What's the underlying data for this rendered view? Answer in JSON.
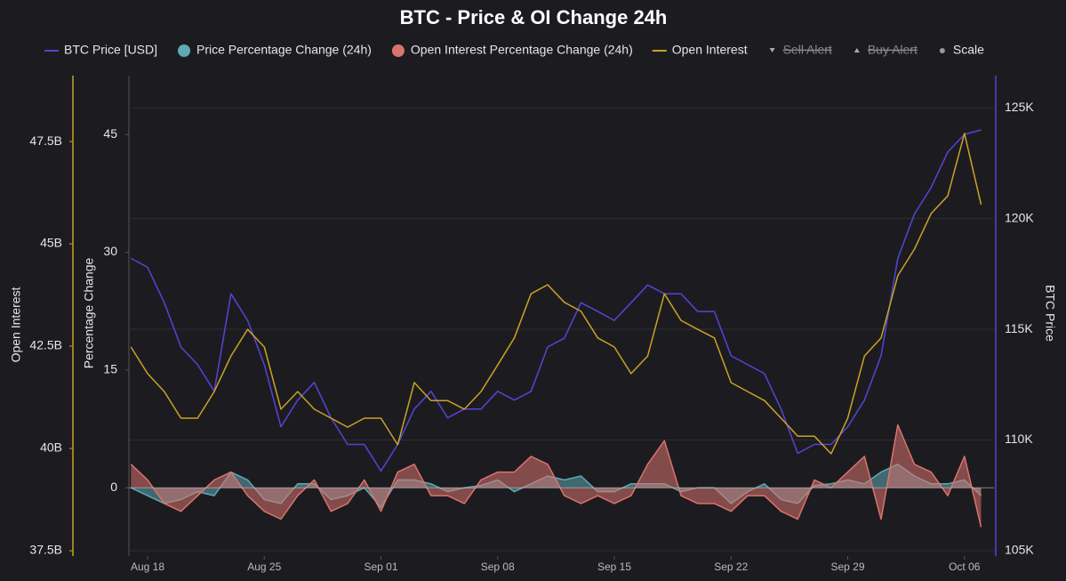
{
  "chart_data": {
    "type": "line",
    "title": "BTC - Price & OI Change 24h",
    "x": [
      "Aug 17",
      "Aug 18",
      "Aug 19",
      "Aug 20",
      "Aug 21",
      "Aug 22",
      "Aug 23",
      "Aug 24",
      "Aug 25",
      "Aug 26",
      "Aug 27",
      "Aug 28",
      "Aug 29",
      "Aug 30",
      "Aug 31",
      "Sep 01",
      "Sep 02",
      "Sep 03",
      "Sep 04",
      "Sep 05",
      "Sep 06",
      "Sep 07",
      "Sep 08",
      "Sep 09",
      "Sep 10",
      "Sep 11",
      "Sep 12",
      "Sep 13",
      "Sep 14",
      "Sep 15",
      "Sep 16",
      "Sep 17",
      "Sep 18",
      "Sep 19",
      "Sep 20",
      "Sep 21",
      "Sep 22",
      "Sep 23",
      "Sep 24",
      "Sep 25",
      "Sep 26",
      "Sep 27",
      "Sep 28",
      "Sep 29",
      "Sep 30",
      "Oct 01",
      "Oct 02",
      "Oct 03",
      "Oct 04",
      "Oct 05",
      "Oct 06",
      "Oct 07"
    ],
    "xticks": [
      "Aug 18",
      "Aug 25",
      "Sep 01",
      "Sep 08",
      "Sep 15",
      "Sep 22",
      "Sep 29",
      "Oct 06"
    ],
    "ylabel": "Open Interest",
    "ylim": [
      37370000000,
      49110000000
    ],
    "yticks": [
      {
        "value": 37500000000,
        "label": "37.5B"
      },
      {
        "value": 40000000000,
        "label": "40B"
      },
      {
        "value": 42500000000,
        "label": "42.5B"
      },
      {
        "value": 45000000000,
        "label": "45B"
      },
      {
        "value": 47500000000,
        "label": "47.5B"
      }
    ],
    "y2label": "BTC Price",
    "y2lim": [
      104760,
      126450
    ],
    "y2ticks": [
      {
        "value": 105000,
        "label": "105K"
      },
      {
        "value": 110000,
        "label": "110K"
      },
      {
        "value": 115000,
        "label": "115K"
      },
      {
        "value": 120000,
        "label": "120K"
      },
      {
        "value": 125000,
        "label": "125K"
      }
    ],
    "y3label": "Percentage Change",
    "y3lim": [
      -8.7,
      52.5
    ],
    "y3ticks": [
      0,
      15,
      30,
      45
    ],
    "grid": true,
    "series": [
      {
        "name": "BTC Price [USD]",
        "color": "#5544d6",
        "axis": "y2",
        "style": "line",
        "values": [
          118200,
          117800,
          116200,
          114200,
          113400,
          112200,
          116600,
          115400,
          113400,
          110600,
          111800,
          112600,
          111000,
          109800,
          109800,
          108600,
          109800,
          111400,
          112200,
          111000,
          111400,
          111400,
          112200,
          111800,
          112200,
          114200,
          114600,
          116200,
          115800,
          115400,
          116200,
          117000,
          116600,
          116600,
          115800,
          115800,
          113800,
          113400,
          113000,
          111400,
          109400,
          109800,
          109800,
          110600,
          111800,
          113800,
          118200,
          120200,
          121400,
          123000,
          123800,
          124000
        ]
      },
      {
        "name": "Price Percentage Change (24h)",
        "color": "#5fa8b5",
        "axis": "y3",
        "style": "area",
        "values": [
          0,
          -1,
          -2,
          -1.5,
          -0.5,
          -1,
          2,
          1,
          -1.5,
          -2,
          0.5,
          0.5,
          -1.5,
          -1,
          0,
          -2.5,
          1,
          1,
          0.5,
          -0.5,
          0,
          0.3,
          1,
          -0.5,
          0.5,
          1.5,
          1,
          1.5,
          -0.5,
          -0.5,
          0.5,
          0.5,
          0.5,
          -0.5,
          0,
          0,
          -2,
          -0.5,
          0.5,
          -1.5,
          -2,
          0.3,
          0.5,
          1,
          0.5,
          2,
          3,
          1.5,
          0.5,
          0.5,
          1,
          -1
        ]
      },
      {
        "name": "Open Interest Percentage Change (24h)",
        "color": "#d9736e",
        "axis": "y3",
        "style": "area",
        "values": [
          3,
          1,
          -2,
          -3,
          -1,
          1,
          2,
          -1,
          -3,
          -4,
          -1,
          1,
          -3,
          -2,
          1,
          -3,
          2,
          3,
          -1,
          -1,
          -2,
          1,
          2,
          2,
          4,
          3,
          -1,
          -2,
          -1,
          -2,
          -1,
          3,
          6,
          -1,
          -2,
          -2,
          -3,
          -1,
          -1,
          -3,
          -4,
          1,
          0,
          2,
          4,
          -4,
          8,
          3,
          2,
          -1,
          4,
          -5
        ]
      },
      {
        "name": "Open Interest",
        "color": "#c9a227",
        "axis": "y",
        "style": "line",
        "values": [
          42480000000,
          41830000000,
          41390000000,
          40740000000,
          40740000000,
          41390000000,
          42260000000,
          42910000000,
          42480000000,
          40960000000,
          41390000000,
          40960000000,
          40740000000,
          40520000000,
          40740000000,
          40740000000,
          40090000000,
          41610000000,
          41170000000,
          41170000000,
          40960000000,
          41390000000,
          42040000000,
          42700000000,
          43780000000,
          44000000000,
          43570000000,
          43350000000,
          42700000000,
          42480000000,
          41830000000,
          42260000000,
          43780000000,
          43130000000,
          42910000000,
          42700000000,
          41610000000,
          41390000000,
          41170000000,
          40740000000,
          40300000000,
          40300000000,
          39870000000,
          40740000000,
          42260000000,
          42700000000,
          44220000000,
          44870000000,
          45740000000,
          46170000000,
          47700000000,
          45960000000
        ]
      }
    ],
    "legend_items": [
      {
        "name": "Sell Alert",
        "hidden": true,
        "marker": "triangle-down"
      },
      {
        "name": "Buy Alert",
        "hidden": true,
        "marker": "triangle-up"
      },
      {
        "name": "Scale",
        "marker": "dot"
      }
    ]
  }
}
